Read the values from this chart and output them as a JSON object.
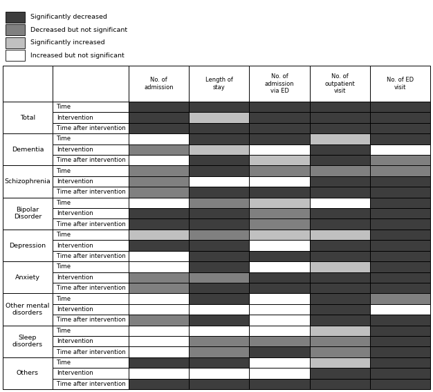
{
  "legend_items": [
    [
      "#3d3d3d",
      "Significantly decreased"
    ],
    [
      "#808080",
      "Decreased but not significant"
    ],
    [
      "#c0c0c0",
      "Significantly increased"
    ],
    [
      "#ffffff",
      "Increased but not significant"
    ]
  ],
  "columns": [
    "No. of\nadmission",
    "Length of\nstay",
    "No. of\nadmission\nvia ED",
    "No. of\noutpatient\nvisit",
    "No. of ED\nvisit"
  ],
  "row_groups": [
    {
      "group": "Total",
      "rows": [
        "Time",
        "Intervention",
        "Time after intervention"
      ],
      "colors": [
        [
          "SD",
          "SD",
          "SD",
          "SD",
          "SD"
        ],
        [
          "SD",
          "SI",
          "SD",
          "SD",
          "SD"
        ],
        [
          "SD",
          "SD",
          "SD",
          "SD",
          "SD"
        ]
      ]
    },
    {
      "group": "Dementia",
      "rows": [
        "Time",
        "Intervention",
        "Time after intervention"
      ],
      "colors": [
        [
          "W",
          "SD",
          "SD",
          "SI",
          "SD"
        ],
        [
          "DNS",
          "SI",
          "W",
          "SD",
          "W"
        ],
        [
          "W",
          "SD",
          "SI",
          "SD",
          "DNS"
        ]
      ]
    },
    {
      "group": "Schizophrenia",
      "rows": [
        "Time",
        "Intervention",
        "Time after intervention"
      ],
      "colors": [
        [
          "DNS",
          "SD",
          "DNS",
          "DNS",
          "DNS"
        ],
        [
          "DNS",
          "W",
          "W",
          "SD",
          "SD"
        ],
        [
          "DNS",
          "SD",
          "SD",
          "SD",
          "SD"
        ]
      ]
    },
    {
      "group": "Bipolar\nDisorder",
      "rows": [
        "Time",
        "Intervention",
        "Time after intervention"
      ],
      "colors": [
        [
          "W",
          "DNS",
          "SI",
          "W",
          "SD"
        ],
        [
          "SD",
          "SD",
          "DNS",
          "SD",
          "SD"
        ],
        [
          "SD",
          "SD",
          "DNS",
          "SD",
          "SD"
        ]
      ]
    },
    {
      "group": "Depression",
      "rows": [
        "Time",
        "Intervention",
        "Time after intervention"
      ],
      "colors": [
        [
          "SI",
          "DNS",
          "SI",
          "SI",
          "SD"
        ],
        [
          "SD",
          "SD",
          "W",
          "SD",
          "SD"
        ],
        [
          "W",
          "SD",
          "SD",
          "SD",
          "SD"
        ]
      ]
    },
    {
      "group": "Anxiety",
      "rows": [
        "Time",
        "Intervention",
        "Time after intervention"
      ],
      "colors": [
        [
          "W",
          "SD",
          "W",
          "SI",
          "SD"
        ],
        [
          "DNS",
          "DNS",
          "SD",
          "SD",
          "SD"
        ],
        [
          "DNS",
          "SD",
          "SD",
          "SD",
          "SD"
        ]
      ]
    },
    {
      "group": "Other mental\ndisorders",
      "rows": [
        "Time",
        "Intervention",
        "Time after intervention"
      ],
      "colors": [
        [
          "W",
          "SD",
          "W",
          "SD",
          "DNS"
        ],
        [
          "W",
          "W",
          "W",
          "SD",
          "W"
        ],
        [
          "DNS",
          "SD",
          "W",
          "SD",
          "SD"
        ]
      ]
    },
    {
      "group": "Sleep\ndisorders",
      "rows": [
        "Time",
        "Intervention",
        "Time after intervention"
      ],
      "colors": [
        [
          "W",
          "W",
          "W",
          "SI",
          "SD"
        ],
        [
          "W",
          "DNS",
          "DNS",
          "DNS",
          "SD"
        ],
        [
          "W",
          "DNS",
          "SD",
          "DNS",
          "SD"
        ]
      ]
    },
    {
      "group": "Others",
      "rows": [
        "Time",
        "Intervention",
        "Time after intervention"
      ],
      "colors": [
        [
          "SD",
          "SD",
          "W",
          "SI",
          "SD"
        ],
        [
          "W",
          "W",
          "W",
          "SD",
          "SD"
        ],
        [
          "SD",
          "SD",
          "SD",
          "SD",
          "SD"
        ]
      ]
    }
  ],
  "color_map": {
    "SD": "#3d3d3d",
    "DNS": "#808080",
    "SI": "#c0c0c0",
    "W": "#ffffff"
  },
  "fig_width": 6.26,
  "fig_height": 5.67,
  "dpi": 100
}
